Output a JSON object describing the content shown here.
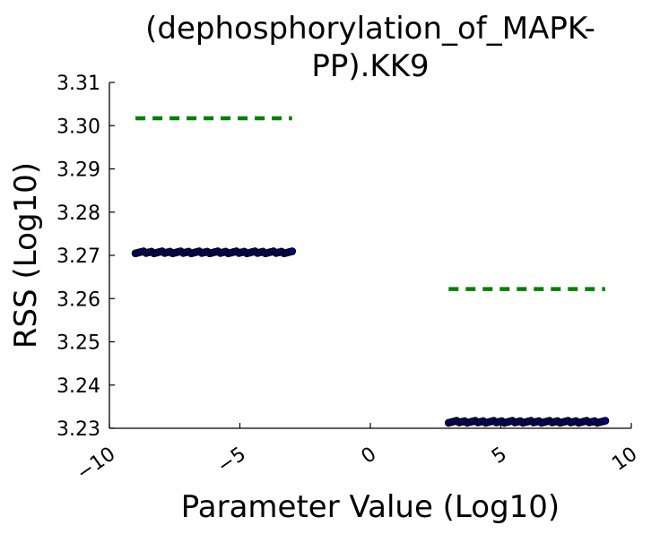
{
  "chart_data": {
    "type": "scatter",
    "title_lines": [
      "(dephosphorylation_of_MAPK-",
      "PP).KK9"
    ],
    "xlabel": "Parameter Value (Log10)",
    "ylabel": "RSS (Log10)",
    "xlim": [
      -10,
      10
    ],
    "ylim": [
      3.23,
      3.31
    ],
    "xticks": [
      -10,
      -5,
      0,
      5,
      10
    ],
    "xtick_labels": [
      "−10",
      "−5",
      "0",
      "5",
      "10"
    ],
    "yticks": [
      3.23,
      3.24,
      3.25,
      3.26,
      3.27,
      3.28,
      3.29,
      3.3,
      3.31
    ],
    "ytick_labels": [
      "3.23",
      "3.24",
      "3.25",
      "3.26",
      "3.27",
      "3.28",
      "3.29",
      "3.30",
      "3.31"
    ],
    "grid": false,
    "colors": {
      "points": "#00008b",
      "point_edge": "#000000",
      "threshold": "#008000"
    },
    "series": [
      {
        "x_range": [
          -9.0,
          -3.0
        ],
        "y": 3.2707,
        "count": 60
      },
      {
        "x_range": [
          3.0,
          9.0
        ],
        "y": 3.2315,
        "count": 60
      }
    ],
    "threshold_lines": [
      {
        "x_range": [
          -9.0,
          -3.0
        ],
        "y": 3.3017
      },
      {
        "x_range": [
          3.0,
          9.0
        ],
        "y": 3.2622
      }
    ]
  }
}
